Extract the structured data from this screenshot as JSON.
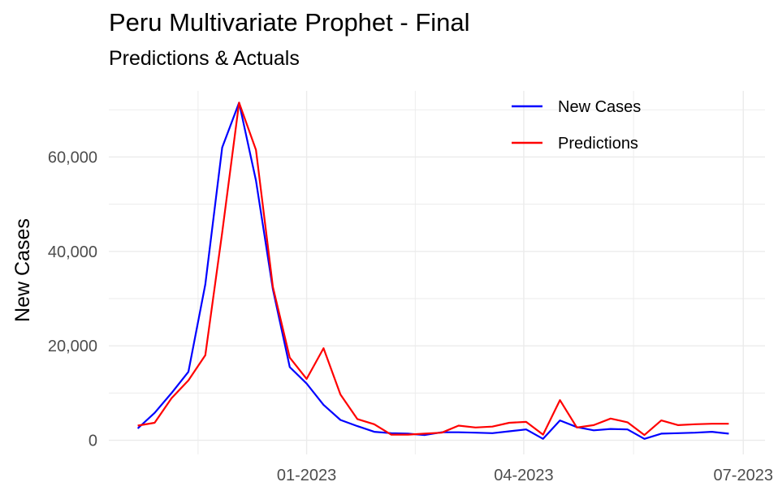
{
  "chart_data": {
    "type": "line",
    "title": "Peru Multivariate Prophet - Final",
    "subtitle": "Predictions & Actuals",
    "ylabel": "New Cases",
    "xlabel": "",
    "ylim": [
      -3000,
      74000
    ],
    "xlim": [
      "2022-10-11",
      "2023-07-10"
    ],
    "y_ticks": [
      {
        "value": 0,
        "label": "0"
      },
      {
        "value": 20000,
        "label": "20,000"
      },
      {
        "value": 40000,
        "label": "40,000"
      },
      {
        "value": 60000,
        "label": "60,000"
      }
    ],
    "x_ticks": [
      {
        "value": "2023-01-01",
        "label": "01-2023"
      },
      {
        "value": "2023-04-01",
        "label": "04-2023"
      },
      {
        "value": "2023-07-01",
        "label": "07-2023"
      }
    ],
    "grid": true,
    "legend_position": "top-right",
    "series": [
      {
        "name": "New Cases",
        "color": "#0000ff",
        "points": [
          [
            "2022-10-23",
            2500
          ],
          [
            "2022-10-30",
            5800
          ],
          [
            "2022-11-06",
            10000
          ],
          [
            "2022-11-13",
            14500
          ],
          [
            "2022-11-20",
            33000
          ],
          [
            "2022-11-27",
            62000
          ],
          [
            "2022-12-04",
            71500
          ],
          [
            "2022-12-11",
            55000
          ],
          [
            "2022-12-18",
            32000
          ],
          [
            "2022-12-25",
            15500
          ],
          [
            "2023-01-01",
            12000
          ],
          [
            "2023-01-08",
            7500
          ],
          [
            "2023-01-15",
            4300
          ],
          [
            "2023-01-22",
            3000
          ],
          [
            "2023-01-29",
            1800
          ],
          [
            "2023-02-05",
            1500
          ],
          [
            "2023-02-12",
            1400
          ],
          [
            "2023-02-19",
            1100
          ],
          [
            "2023-02-26",
            1700
          ],
          [
            "2023-03-05",
            1700
          ],
          [
            "2023-03-12",
            1600
          ],
          [
            "2023-03-19",
            1500
          ],
          [
            "2023-03-26",
            1900
          ],
          [
            "2023-04-02",
            2300
          ],
          [
            "2023-04-09",
            300
          ],
          [
            "2023-04-16",
            4200
          ],
          [
            "2023-04-23",
            2800
          ],
          [
            "2023-04-30",
            2100
          ],
          [
            "2023-05-07",
            2400
          ],
          [
            "2023-05-14",
            2300
          ],
          [
            "2023-05-21",
            300
          ],
          [
            "2023-05-28",
            1400
          ],
          [
            "2023-06-04",
            1500
          ],
          [
            "2023-06-11",
            1600
          ],
          [
            "2023-06-18",
            1800
          ],
          [
            "2023-06-25",
            1400
          ]
        ]
      },
      {
        "name": "Predictions",
        "color": "#ff0000",
        "points": [
          [
            "2022-10-23",
            3100
          ],
          [
            "2022-10-30",
            3700
          ],
          [
            "2022-11-06",
            8900
          ],
          [
            "2022-11-13",
            12700
          ],
          [
            "2022-11-20",
            18000
          ],
          [
            "2022-11-27",
            44000
          ],
          [
            "2022-12-04",
            71500
          ],
          [
            "2022-12-11",
            61500
          ],
          [
            "2022-12-18",
            32500
          ],
          [
            "2022-12-25",
            17500
          ],
          [
            "2023-01-01",
            13000
          ],
          [
            "2023-01-08",
            19500
          ],
          [
            "2023-01-15",
            9700
          ],
          [
            "2023-01-22",
            4500
          ],
          [
            "2023-01-29",
            3400
          ],
          [
            "2023-02-05",
            1200
          ],
          [
            "2023-02-12",
            1200
          ],
          [
            "2023-02-19",
            1400
          ],
          [
            "2023-02-26",
            1600
          ],
          [
            "2023-03-05",
            3100
          ],
          [
            "2023-03-12",
            2700
          ],
          [
            "2023-03-19",
            2900
          ],
          [
            "2023-03-26",
            3700
          ],
          [
            "2023-04-02",
            3900
          ],
          [
            "2023-04-09",
            1200
          ],
          [
            "2023-04-16",
            8500
          ],
          [
            "2023-04-23",
            2700
          ],
          [
            "2023-04-30",
            3200
          ],
          [
            "2023-05-07",
            4600
          ],
          [
            "2023-05-14",
            3800
          ],
          [
            "2023-05-21",
            1100
          ],
          [
            "2023-05-28",
            4200
          ],
          [
            "2023-06-04",
            3200
          ],
          [
            "2023-06-11",
            3400
          ],
          [
            "2023-06-18",
            3500
          ],
          [
            "2023-06-25",
            3500
          ]
        ]
      }
    ]
  }
}
